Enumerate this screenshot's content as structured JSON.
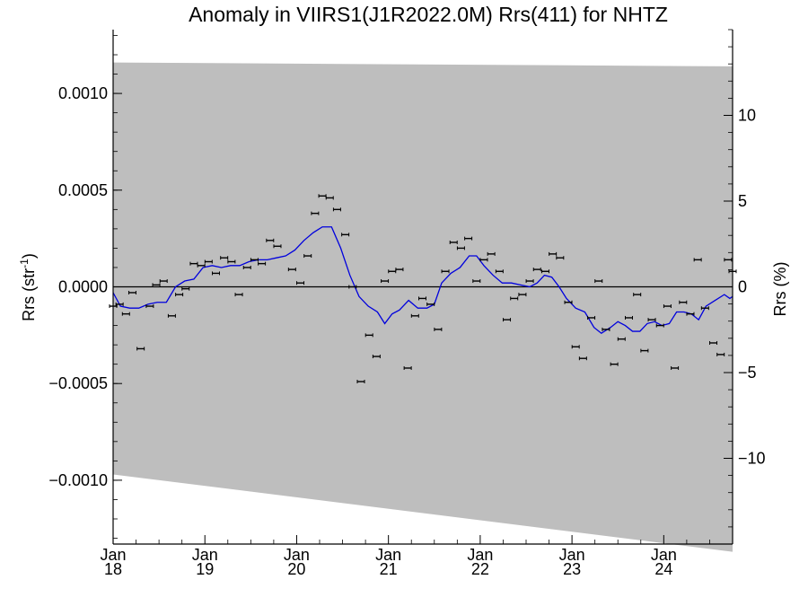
{
  "chart_data": {
    "type": "line",
    "title": "Anomaly in VIIRS1(J1R2022.0M) Rrs(411) for NHTZ",
    "ylabel_left": "Rrs (str",
    "ylabel_left_sup": "-1",
    "ylabel_left_close": ")",
    "ylabel_right": "Rrs (%)",
    "ylim_left": [
      -0.00133,
      0.00133
    ],
    "ylim_right": [
      -15,
      15
    ],
    "xlim": [
      2018.0,
      2024.75
    ],
    "left_ticks": [
      {
        "value": 0.001,
        "label": "0.0010"
      },
      {
        "value": 0.0005,
        "label": "0.0005"
      },
      {
        "value": 0.0,
        "label": "0.0000"
      },
      {
        "value": -0.0005,
        "label": "−0.0005"
      },
      {
        "value": -0.001,
        "label": "−0.0010"
      }
    ],
    "right_ticks": [
      {
        "value": 10,
        "label": "10"
      },
      {
        "value": 5,
        "label": "5"
      },
      {
        "value": 0,
        "label": "0"
      },
      {
        "value": -5,
        "label": "−5"
      },
      {
        "value": -10,
        "label": "−10"
      }
    ],
    "x_ticks": [
      {
        "value": 2018,
        "month": "Jan",
        "year": "18"
      },
      {
        "value": 2019,
        "month": "Jan",
        "year": "19"
      },
      {
        "value": 2020,
        "month": "Jan",
        "year": "20"
      },
      {
        "value": 2021,
        "month": "Jan",
        "year": "21"
      },
      {
        "value": 2022,
        "month": "Jan",
        "year": "22"
      },
      {
        "value": 2023,
        "month": "Jan",
        "year": "23"
      },
      {
        "value": 2024,
        "month": "Jan",
        "year": "24"
      }
    ],
    "band": {
      "upper": [
        [
          2018.0,
          0.00116
        ],
        [
          2024.75,
          0.00114
        ]
      ],
      "lower": [
        [
          2018.0,
          -0.00097
        ],
        [
          2024.75,
          -0.00137
        ]
      ],
      "color": "#bebebe"
    },
    "zero_line": 0,
    "series": [
      {
        "kind": "points_with_errorbars",
        "color": "#000000",
        "points": [
          [
            2018.0,
            -0.0001
          ],
          [
            2018.07,
            -9e-05
          ],
          [
            2018.14,
            -0.00014
          ],
          [
            2018.21,
            -3e-05
          ],
          [
            2018.3,
            -0.00032
          ],
          [
            2018.4,
            -0.0001
          ],
          [
            2018.47,
            1e-05
          ],
          [
            2018.55,
            3e-05
          ],
          [
            2018.64,
            -0.00015
          ],
          [
            2018.72,
            -4e-05
          ],
          [
            2018.79,
            -1e-05
          ],
          [
            2018.88,
            0.00012
          ],
          [
            2018.96,
            0.00011
          ],
          [
            2019.04,
            0.00013
          ],
          [
            2019.12,
            7e-05
          ],
          [
            2019.21,
            0.00015
          ],
          [
            2019.29,
            0.00013
          ],
          [
            2019.37,
            -4e-05
          ],
          [
            2019.46,
            0.0001
          ],
          [
            2019.54,
            0.00014
          ],
          [
            2019.62,
            0.00012
          ],
          [
            2019.71,
            0.00024
          ],
          [
            2019.79,
            0.00021
          ],
          [
            2019.95,
            9e-05
          ],
          [
            2020.04,
            2e-05
          ],
          [
            2020.12,
            0.00016
          ],
          [
            2020.2,
            0.00038
          ],
          [
            2020.28,
            0.00047
          ],
          [
            2020.36,
            0.00046
          ],
          [
            2020.44,
            0.0004
          ],
          [
            2020.53,
            0.00027
          ],
          [
            2020.61,
            0.0
          ],
          [
            2020.7,
            -0.00049
          ],
          [
            2020.79,
            -0.00025
          ],
          [
            2020.87,
            -0.00036
          ],
          [
            2020.96,
            3e-05
          ],
          [
            2021.04,
            8e-05
          ],
          [
            2021.12,
            9e-05
          ],
          [
            2021.21,
            -0.00042
          ],
          [
            2021.29,
            -0.00015
          ],
          [
            2021.37,
            -6e-05
          ],
          [
            2021.46,
            -9e-05
          ],
          [
            2021.54,
            -0.00022
          ],
          [
            2021.62,
            8e-05
          ],
          [
            2021.71,
            0.00023
          ],
          [
            2021.79,
            0.0002
          ],
          [
            2021.87,
            0.00025
          ],
          [
            2021.96,
            3e-05
          ],
          [
            2022.04,
            0.00014
          ],
          [
            2022.12,
            0.00017
          ],
          [
            2022.21,
            8e-05
          ],
          [
            2022.29,
            -0.00017
          ],
          [
            2022.37,
            -6e-05
          ],
          [
            2022.46,
            -4e-05
          ],
          [
            2022.54,
            3e-05
          ],
          [
            2022.62,
            9e-05
          ],
          [
            2022.71,
            8e-05
          ],
          [
            2022.79,
            0.00017
          ],
          [
            2022.87,
            0.00015
          ],
          [
            2022.96,
            -8e-05
          ],
          [
            2023.04,
            -0.00031
          ],
          [
            2023.12,
            -0.00037
          ],
          [
            2023.21,
            -0.00016
          ],
          [
            2023.29,
            3e-05
          ],
          [
            2023.37,
            -0.00022
          ],
          [
            2023.46,
            -0.0004
          ],
          [
            2023.54,
            -0.00027
          ],
          [
            2023.62,
            -0.00016
          ],
          [
            2023.71,
            -4e-05
          ],
          [
            2023.79,
            -0.00033
          ],
          [
            2023.87,
            -0.00017
          ],
          [
            2023.96,
            -0.0002
          ],
          [
            2024.04,
            -0.0001
          ],
          [
            2024.12,
            -0.00042
          ],
          [
            2024.21,
            -8e-05
          ],
          [
            2024.29,
            -0.00014
          ],
          [
            2024.37,
            0.00014
          ],
          [
            2024.45,
            -0.00011
          ],
          [
            2024.54,
            -0.00029
          ],
          [
            2024.62,
            -0.00035
          ],
          [
            2024.7,
            0.00014
          ],
          [
            2024.75,
            8e-05
          ]
        ]
      },
      {
        "kind": "line",
        "color": "#0000dd",
        "points": [
          [
            2018.0,
            -3e-05
          ],
          [
            2018.08,
            -0.0001
          ],
          [
            2018.18,
            -0.00011
          ],
          [
            2018.28,
            -0.00011
          ],
          [
            2018.38,
            -9e-05
          ],
          [
            2018.48,
            -8e-05
          ],
          [
            2018.58,
            -8e-05
          ],
          [
            2018.68,
            0.0
          ],
          [
            2018.78,
            3e-05
          ],
          [
            2018.88,
            4e-05
          ],
          [
            2018.98,
            0.0001
          ],
          [
            2019.08,
            0.00011
          ],
          [
            2019.18,
            0.0001
          ],
          [
            2019.28,
            0.00011
          ],
          [
            2019.38,
            0.00011
          ],
          [
            2019.48,
            0.00013
          ],
          [
            2019.58,
            0.00014
          ],
          [
            2019.68,
            0.00014
          ],
          [
            2019.78,
            0.00015
          ],
          [
            2019.88,
            0.00016
          ],
          [
            2019.98,
            0.00019
          ],
          [
            2020.08,
            0.00024
          ],
          [
            2020.18,
            0.00028
          ],
          [
            2020.28,
            0.00031
          ],
          [
            2020.38,
            0.00031
          ],
          [
            2020.48,
            0.0002
          ],
          [
            2020.58,
            6e-05
          ],
          [
            2020.68,
            -5e-05
          ],
          [
            2020.78,
            -0.0001
          ],
          [
            2020.88,
            -0.00013
          ],
          [
            2020.96,
            -0.00019
          ],
          [
            2021.04,
            -0.00014
          ],
          [
            2021.12,
            -0.00012
          ],
          [
            2021.22,
            -7e-05
          ],
          [
            2021.32,
            -0.00011
          ],
          [
            2021.42,
            -0.00011
          ],
          [
            2021.5,
            -9e-05
          ],
          [
            2021.58,
            2e-05
          ],
          [
            2021.68,
            7e-05
          ],
          [
            2021.78,
            0.0001
          ],
          [
            2021.88,
            0.00016
          ],
          [
            2021.96,
            0.00016
          ],
          [
            2022.04,
            0.00011
          ],
          [
            2022.14,
            6e-05
          ],
          [
            2022.24,
            2e-05
          ],
          [
            2022.34,
            2e-05
          ],
          [
            2022.44,
            1e-05
          ],
          [
            2022.54,
            0.0
          ],
          [
            2022.62,
            2e-05
          ],
          [
            2022.7,
            6e-05
          ],
          [
            2022.78,
            5e-05
          ],
          [
            2022.86,
            0.0
          ],
          [
            2022.94,
            -6e-05
          ],
          [
            2023.04,
            -0.00011
          ],
          [
            2023.14,
            -0.00013
          ],
          [
            2023.24,
            -0.00021
          ],
          [
            2023.32,
            -0.00024
          ],
          [
            2023.42,
            -0.00021
          ],
          [
            2023.5,
            -0.00018
          ],
          [
            2023.58,
            -0.0002
          ],
          [
            2023.66,
            -0.00023
          ],
          [
            2023.74,
            -0.00023
          ],
          [
            2023.82,
            -0.00019
          ],
          [
            2023.9,
            -0.00018
          ],
          [
            2023.98,
            -0.0002
          ],
          [
            2024.06,
            -0.00019
          ],
          [
            2024.14,
            -0.00013
          ],
          [
            2024.22,
            -0.00013
          ],
          [
            2024.3,
            -0.00014
          ],
          [
            2024.38,
            -0.00017
          ],
          [
            2024.46,
            -0.0001
          ],
          [
            2024.56,
            -7e-05
          ],
          [
            2024.66,
            -4e-05
          ],
          [
            2024.72,
            -6e-05
          ],
          [
            2024.75,
            -5e-05
          ]
        ]
      }
    ]
  }
}
